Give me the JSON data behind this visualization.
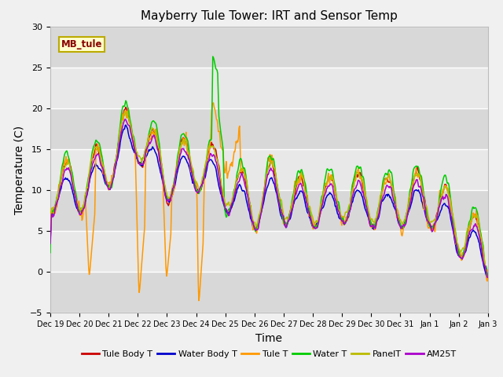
{
  "title": "Mayberry Tule Tower: IRT and Sensor Temp",
  "xlabel": "Time",
  "ylabel": "Temperature (C)",
  "ylim": [
    -5,
    30
  ],
  "yticks": [
    -5,
    0,
    5,
    10,
    15,
    20,
    25,
    30
  ],
  "x_tick_labels": [
    "Dec 19",
    "Dec 20",
    "Dec 21",
    "Dec 22",
    "Dec 23",
    "Dec 24",
    "Dec 25",
    "Dec 26",
    "Dec 27",
    "Dec 28",
    "Dec 29",
    "Dec 30",
    "Dec 31",
    "Jan 1",
    "Jan 2",
    "Jan 3"
  ],
  "series_colors": {
    "Tule Body T": "#cc0000",
    "Water Body T": "#0000cc",
    "Tule T": "#ff9900",
    "Water T": "#00cc00",
    "PanelT": "#bbbb00",
    "AM25T": "#aa00cc"
  },
  "legend_label": "MB_tule",
  "fig_bg": "#f0f0f0",
  "plot_bg": "#e8e8e8",
  "band_dark": "#d8d8d8",
  "grid_color": "#ffffff",
  "title_fontsize": 11,
  "axis_label_fontsize": 10,
  "tick_fontsize": 8,
  "legend_fontsize": 8,
  "line_width": 1.1
}
